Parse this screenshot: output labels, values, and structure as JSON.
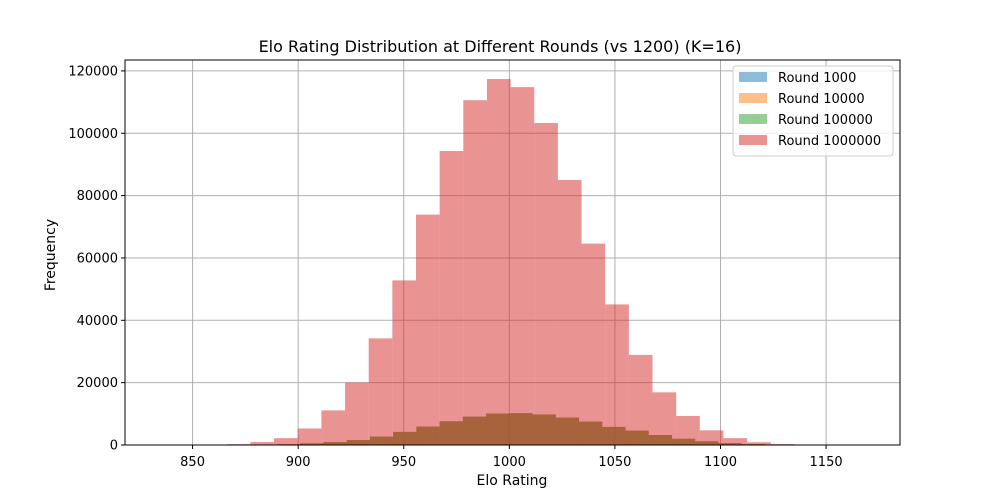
{
  "chart_data": {
    "type": "histogram",
    "title": "Elo Rating Distribution at Different Rounds (vs 1200) (K=16)",
    "xlabel": "Elo Rating",
    "ylabel": "Frequency",
    "xlim": [
      818,
      1185
    ],
    "ylim": [
      0,
      123500
    ],
    "xticks": [
      850,
      900,
      950,
      1000,
      1050,
      1100,
      1150
    ],
    "yticks": [
      0,
      20000,
      40000,
      60000,
      80000,
      100000,
      120000
    ],
    "xtick_labels": [
      "850",
      "900",
      "950",
      "1000",
      "1050",
      "1100",
      "1150"
    ],
    "ytick_labels": [
      "0",
      "20000",
      "40000",
      "60000",
      "80000",
      "100000",
      "120000"
    ],
    "grid": true,
    "legend_position": "top-right",
    "series": [
      {
        "name": "Round 1000",
        "color": "#1f77b4",
        "opacity": 0.5,
        "bin_edges": [
          868,
          879,
          890,
          901,
          912,
          923,
          934,
          945,
          956,
          967,
          978,
          989,
          1000,
          1011,
          1022,
          1033,
          1044,
          1055,
          1066,
          1077,
          1088,
          1099,
          1110,
          1121,
          1132
        ],
        "counts": [
          30,
          100,
          240,
          520,
          950,
          1600,
          2700,
          4200,
          5900,
          7600,
          9100,
          10100,
          10200,
          9800,
          8800,
          7500,
          5800,
          4600,
          3200,
          2000,
          1200,
          600,
          280,
          100
        ]
      },
      {
        "name": "Round 10000",
        "color": "#ff7f0e",
        "opacity": 0.5,
        "bin_edges": [
          868,
          879,
          890,
          901,
          912,
          923,
          934,
          945,
          956,
          967,
          978,
          989,
          1000,
          1011,
          1022,
          1033,
          1044,
          1055,
          1066,
          1077,
          1088,
          1099,
          1110,
          1121,
          1132
        ],
        "counts": [
          30,
          100,
          240,
          520,
          950,
          1600,
          2700,
          4200,
          5900,
          7600,
          9100,
          10100,
          10200,
          9800,
          8800,
          7500,
          5800,
          4600,
          3200,
          2000,
          1200,
          600,
          280,
          100
        ]
      },
      {
        "name": "Round 100000",
        "color": "#2ca02c",
        "opacity": 0.5,
        "bin_edges": [
          868,
          879,
          890,
          901,
          912,
          923,
          934,
          945,
          956,
          967,
          978,
          989,
          1000,
          1011,
          1022,
          1033,
          1044,
          1055,
          1066,
          1077,
          1088,
          1099,
          1110,
          1121,
          1132
        ],
        "counts": [
          30,
          100,
          240,
          520,
          950,
          1600,
          2700,
          4200,
          5900,
          7600,
          9100,
          10100,
          10200,
          9800,
          8800,
          7500,
          5800,
          4600,
          3200,
          2000,
          1200,
          600,
          280,
          100
        ]
      },
      {
        "name": "Round 1000000",
        "color": "#d62728",
        "opacity": 0.5,
        "bin_edges": [
          866.2,
          877.4,
          888.6,
          899.8,
          911.0,
          922.2,
          933.4,
          944.6,
          955.8,
          967.0,
          978.2,
          989.4,
          1000.6,
          1011.8,
          1023.0,
          1034.2,
          1045.4,
          1056.6,
          1067.8,
          1079.0,
          1090.2,
          1101.4,
          1112.6,
          1123.8,
          1135.0
        ],
        "counts": [
          250,
          950,
          2200,
          5300,
          11100,
          20000,
          34200,
          52800,
          73900,
          94300,
          110600,
          117400,
          114800,
          103300,
          85000,
          64600,
          45100,
          28900,
          16900,
          9300,
          4700,
          2200,
          900,
          300
        ]
      }
    ]
  }
}
